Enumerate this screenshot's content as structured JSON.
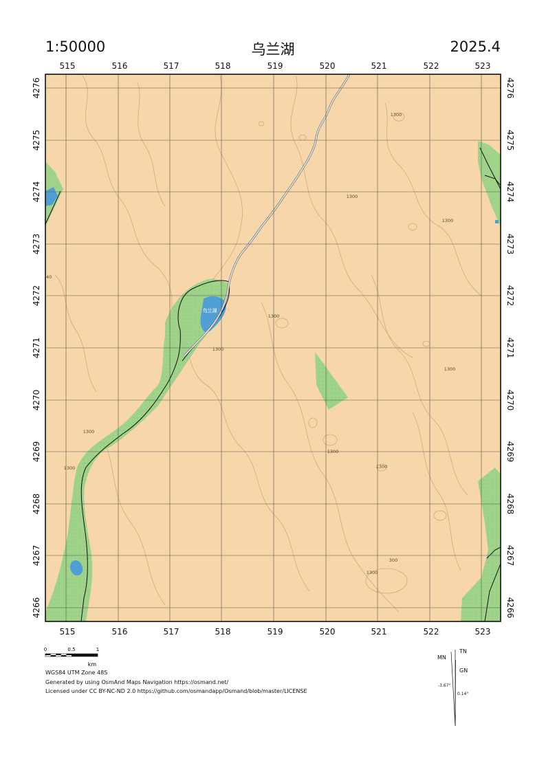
{
  "header": {
    "scale": "1:50000",
    "title": "乌兰湖",
    "date": "2025.4"
  },
  "grid": {
    "easting_labels": [
      "515",
      "516",
      "517",
      "518",
      "519",
      "520",
      "521",
      "522",
      "523"
    ],
    "northing_labels": [
      "4276",
      "4275",
      "4274",
      "4273",
      "4272",
      "4271",
      "4270",
      "4269",
      "4268",
      "4267",
      "4266"
    ]
  },
  "map": {
    "lake_label": "乌兰湖",
    "contour_labels": [
      "1300",
      "1300",
      "1300",
      "1300",
      "1300",
      "1300",
      "1300",
      "1300",
      "1300",
      "1300",
      "300",
      "1300"
    ],
    "edge_label": "40"
  },
  "scalebar": {
    "ticks": [
      "0",
      "0.5",
      "1"
    ],
    "unit": "km"
  },
  "footer": {
    "projection": "WGS84 UTM Zone 48S",
    "generated": "Generated by using OsmAnd Maps Navigation https://osmand.net/",
    "license": "Licensed under CC BY-NC-ND 2.0 https://github.com/osmandapp/Osmand/blob/master/LICENSE"
  },
  "north_arrow": {
    "tn": "TN",
    "mn": "MN",
    "gn": "GN",
    "mn_angle": "-3.67°",
    "gn_angle": "0.14°"
  },
  "colors": {
    "land": "#f7d6a9",
    "vegetation": "#9fd38a",
    "water": "#4f9fd4",
    "contour": "#c49a6c",
    "grid": "#555555",
    "road": "#9a9a9a"
  }
}
